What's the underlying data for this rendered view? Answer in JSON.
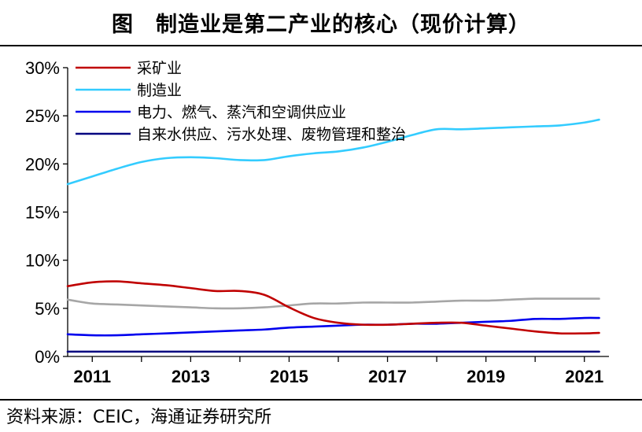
{
  "title": {
    "lead": "图",
    "text": "制造业是第二产业的核心（现价计算）"
  },
  "source": "资料来源：CEIC，海通证券研究所",
  "chart_data": {
    "type": "line",
    "title": "制造业是第二产业的核心（现价计算）",
    "xlabel": "",
    "ylabel": "",
    "xlim": [
      2010.5,
      2021.5
    ],
    "ylim": [
      0,
      30
    ],
    "x_ticks": [
      2011,
      2013,
      2015,
      2017,
      2019,
      2021
    ],
    "x_tick_labels": [
      "2011",
      "2013",
      "2015",
      "2017",
      "2019",
      "2021"
    ],
    "y_ticks": [
      0,
      5,
      10,
      15,
      20,
      25,
      30
    ],
    "y_tick_labels": [
      "0%",
      "5%",
      "10%",
      "15%",
      "20%",
      "25%",
      "30%"
    ],
    "grid": false,
    "legend_position": "top-left",
    "series": [
      {
        "name": "采矿业",
        "color": "#c00000",
        "legend": true,
        "points": [
          [
            2010.5,
            7.3
          ],
          [
            2011.0,
            7.7
          ],
          [
            2011.5,
            7.8
          ],
          [
            2012.0,
            7.6
          ],
          [
            2012.5,
            7.4
          ],
          [
            2013.0,
            7.1
          ],
          [
            2013.5,
            6.8
          ],
          [
            2014.0,
            6.8
          ],
          [
            2014.5,
            6.4
          ],
          [
            2015.0,
            5.1
          ],
          [
            2015.5,
            4.0
          ],
          [
            2016.0,
            3.5
          ],
          [
            2016.5,
            3.3
          ],
          [
            2017.0,
            3.3
          ],
          [
            2017.5,
            3.4
          ],
          [
            2018.0,
            3.5
          ],
          [
            2018.5,
            3.5
          ],
          [
            2019.0,
            3.2
          ],
          [
            2019.5,
            2.9
          ],
          [
            2020.0,
            2.6
          ],
          [
            2020.5,
            2.4
          ],
          [
            2021.0,
            2.4
          ],
          [
            2021.3,
            2.45
          ]
        ]
      },
      {
        "name": "制造业",
        "color": "#33ccff",
        "legend": true,
        "points": [
          [
            2010.5,
            17.9
          ],
          [
            2011.0,
            18.7
          ],
          [
            2011.5,
            19.5
          ],
          [
            2012.0,
            20.2
          ],
          [
            2012.5,
            20.6
          ],
          [
            2013.0,
            20.7
          ],
          [
            2013.5,
            20.6
          ],
          [
            2014.0,
            20.4
          ],
          [
            2014.5,
            20.4
          ],
          [
            2015.0,
            20.8
          ],
          [
            2015.5,
            21.1
          ],
          [
            2016.0,
            21.3
          ],
          [
            2016.5,
            21.7
          ],
          [
            2017.0,
            22.3
          ],
          [
            2017.5,
            23.0
          ],
          [
            2018.0,
            23.6
          ],
          [
            2018.5,
            23.6
          ],
          [
            2019.0,
            23.7
          ],
          [
            2019.5,
            23.8
          ],
          [
            2020.0,
            23.9
          ],
          [
            2020.5,
            24.0
          ],
          [
            2021.0,
            24.3
          ],
          [
            2021.3,
            24.6
          ]
        ]
      },
      {
        "name": "电力、燃气、蒸汽和空调供应业",
        "color": "#0000ee",
        "legend": true,
        "points": [
          [
            2010.5,
            2.3
          ],
          [
            2011.0,
            2.2
          ],
          [
            2011.5,
            2.2
          ],
          [
            2012.0,
            2.3
          ],
          [
            2012.5,
            2.4
          ],
          [
            2013.0,
            2.5
          ],
          [
            2013.5,
            2.6
          ],
          [
            2014.0,
            2.7
          ],
          [
            2014.5,
            2.8
          ],
          [
            2015.0,
            3.0
          ],
          [
            2015.5,
            3.1
          ],
          [
            2016.0,
            3.2
          ],
          [
            2016.5,
            3.3
          ],
          [
            2017.0,
            3.3
          ],
          [
            2017.5,
            3.4
          ],
          [
            2018.0,
            3.4
          ],
          [
            2018.5,
            3.5
          ],
          [
            2019.0,
            3.6
          ],
          [
            2019.5,
            3.7
          ],
          [
            2020.0,
            3.9
          ],
          [
            2020.5,
            3.9
          ],
          [
            2021.0,
            4.0
          ],
          [
            2021.3,
            4.0
          ]
        ]
      },
      {
        "name": "自来水供应、污水处理、废物管理和整治",
        "color": "#000080",
        "legend": true,
        "points": [
          [
            2010.5,
            0.5
          ],
          [
            2011.0,
            0.5
          ],
          [
            2012.0,
            0.5
          ],
          [
            2013.0,
            0.5
          ],
          [
            2014.0,
            0.5
          ],
          [
            2015.0,
            0.5
          ],
          [
            2016.0,
            0.5
          ],
          [
            2017.0,
            0.5
          ],
          [
            2018.0,
            0.5
          ],
          [
            2019.0,
            0.5
          ],
          [
            2020.0,
            0.5
          ],
          [
            2021.0,
            0.5
          ],
          [
            2021.3,
            0.5
          ]
        ]
      },
      {
        "name": "",
        "color": "#a6a6a6",
        "legend": false,
        "points": [
          [
            2010.5,
            5.9
          ],
          [
            2011.0,
            5.5
          ],
          [
            2011.5,
            5.4
          ],
          [
            2012.0,
            5.3
          ],
          [
            2012.5,
            5.2
          ],
          [
            2013.0,
            5.1
          ],
          [
            2013.5,
            5.0
          ],
          [
            2014.0,
            5.0
          ],
          [
            2014.5,
            5.1
          ],
          [
            2015.0,
            5.3
          ],
          [
            2015.5,
            5.5
          ],
          [
            2016.0,
            5.5
          ],
          [
            2016.5,
            5.6
          ],
          [
            2017.0,
            5.6
          ],
          [
            2017.5,
            5.6
          ],
          [
            2018.0,
            5.7
          ],
          [
            2018.5,
            5.8
          ],
          [
            2019.0,
            5.8
          ],
          [
            2019.5,
            5.9
          ],
          [
            2020.0,
            6.0
          ],
          [
            2020.5,
            6.0
          ],
          [
            2021.0,
            6.0
          ],
          [
            2021.3,
            6.0
          ]
        ]
      }
    ]
  }
}
